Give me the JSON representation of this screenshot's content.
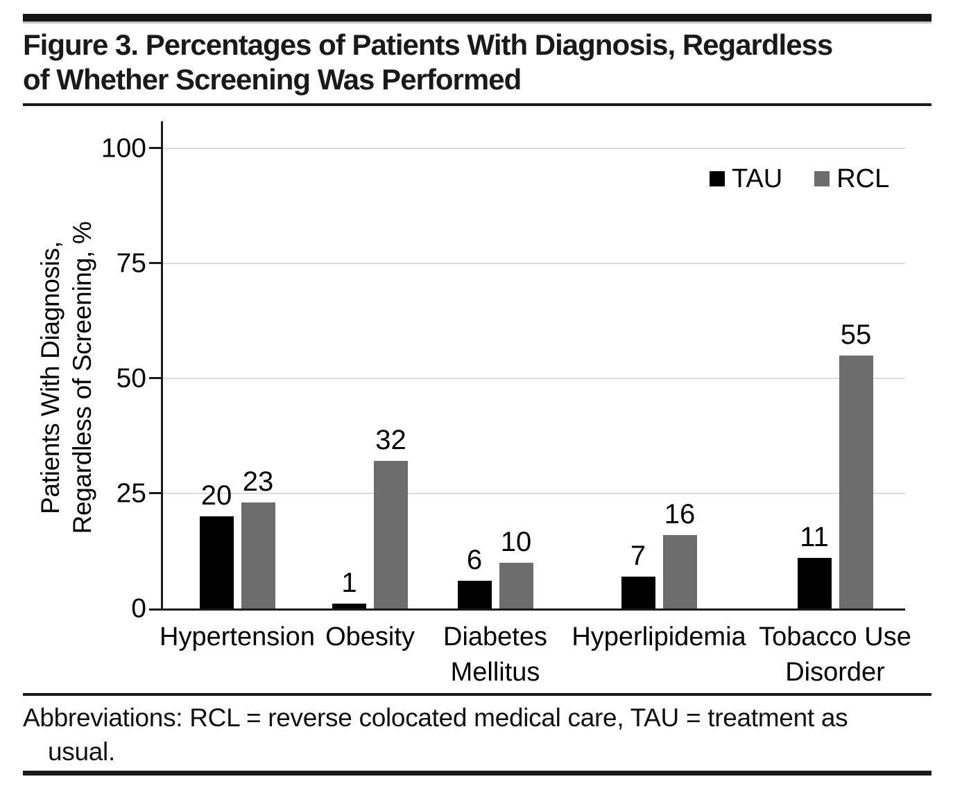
{
  "figure": {
    "title_lines": [
      "Figure 3. Percentages of Patients With Diagnosis, Regardless",
      "of Whether Screening Was Performed"
    ]
  },
  "chart_data": {
    "type": "bar",
    "categories": [
      "Hypertension",
      "Obesity",
      "Diabetes Mellitus",
      "Hyperlipidemia",
      "Tobacco Use Disorder"
    ],
    "category_label_lines": [
      [
        "Hypertension"
      ],
      [
        "Obesity"
      ],
      [
        "Diabetes",
        "Mellitus"
      ],
      [
        "Hyperlipidemia"
      ],
      [
        "Tobacco Use",
        "Disorder"
      ]
    ],
    "series": [
      {
        "name": "TAU",
        "color": "#000000",
        "values": [
          20,
          1,
          6,
          7,
          11
        ]
      },
      {
        "name": "RCL",
        "color": "#6d6d6d",
        "values": [
          23,
          32,
          10,
          16,
          55
        ]
      }
    ],
    "title": "",
    "xlabel": "",
    "ylabel_lines": [
      "Patients With Diagnosis,",
      "Regardless of Screening, %"
    ],
    "yticks": [
      0,
      25,
      50,
      75,
      100
    ],
    "ylim": [
      0,
      100
    ],
    "grid": true,
    "legend_position": "top-right",
    "value_labels": true
  },
  "footer": {
    "lines": [
      "Abbreviations: RCL = reverse colocated medical care, TAU = treatment as",
      "usual."
    ]
  },
  "colors": {
    "tau_bar": "#000000",
    "rcl_bar": "#6d6d6d",
    "gridline": "#dcdcdc",
    "axis": "#1a1a1a",
    "rule": "#151515"
  }
}
